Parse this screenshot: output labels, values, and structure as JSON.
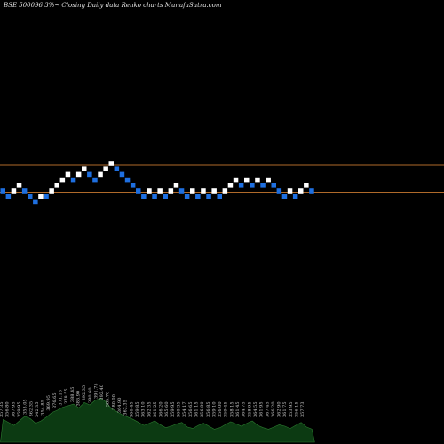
{
  "header": {
    "title": "BSE 500096  3%~  Closing Daily data  Renko  charts MunafaSutra.com"
  },
  "colors": {
    "background": "#000000",
    "brick_up": "#ffffff",
    "brick_down": "#1e6fe0",
    "reference_line": "#b06a2a",
    "volume_fill": "#0c3a12",
    "volume_stroke": "#2b7a2f"
  },
  "chart_data": {
    "type": "renko",
    "brick_size_percent": 3,
    "reference_lines_level": [
      8,
      4
    ],
    "bricks": [
      {
        "level": 4,
        "dir": "down"
      },
      {
        "level": 3,
        "dir": "down"
      },
      {
        "level": 4,
        "dir": "up"
      },
      {
        "level": 5,
        "dir": "up"
      },
      {
        "level": 4,
        "dir": "down"
      },
      {
        "level": 3,
        "dir": "down"
      },
      {
        "level": 2,
        "dir": "down"
      },
      {
        "level": 3,
        "dir": "up"
      },
      {
        "level": 3,
        "dir": "down"
      },
      {
        "level": 4,
        "dir": "up"
      },
      {
        "level": 5,
        "dir": "up"
      },
      {
        "level": 6,
        "dir": "up"
      },
      {
        "level": 7,
        "dir": "up"
      },
      {
        "level": 6,
        "dir": "down"
      },
      {
        "level": 7,
        "dir": "up"
      },
      {
        "level": 8,
        "dir": "up"
      },
      {
        "level": 7,
        "dir": "down"
      },
      {
        "level": 6,
        "dir": "down"
      },
      {
        "level": 7,
        "dir": "up"
      },
      {
        "level": 8,
        "dir": "up"
      },
      {
        "level": 9,
        "dir": "up"
      },
      {
        "level": 8,
        "dir": "down"
      },
      {
        "level": 7,
        "dir": "down"
      },
      {
        "level": 6,
        "dir": "down"
      },
      {
        "level": 5,
        "dir": "down"
      },
      {
        "level": 4,
        "dir": "down"
      },
      {
        "level": 3,
        "dir": "down"
      },
      {
        "level": 4,
        "dir": "up"
      },
      {
        "level": 3,
        "dir": "down"
      },
      {
        "level": 4,
        "dir": "up"
      },
      {
        "level": 3,
        "dir": "down"
      },
      {
        "level": 4,
        "dir": "up"
      },
      {
        "level": 5,
        "dir": "up"
      },
      {
        "level": 4,
        "dir": "down"
      },
      {
        "level": 3,
        "dir": "down"
      },
      {
        "level": 4,
        "dir": "up"
      },
      {
        "level": 3,
        "dir": "down"
      },
      {
        "level": 4,
        "dir": "up"
      },
      {
        "level": 3,
        "dir": "down"
      },
      {
        "level": 4,
        "dir": "up"
      },
      {
        "level": 3,
        "dir": "down"
      },
      {
        "level": 4,
        "dir": "up"
      },
      {
        "level": 5,
        "dir": "up"
      },
      {
        "level": 6,
        "dir": "up"
      },
      {
        "level": 5,
        "dir": "down"
      },
      {
        "level": 6,
        "dir": "up"
      },
      {
        "level": 5,
        "dir": "down"
      },
      {
        "level": 6,
        "dir": "up"
      },
      {
        "level": 5,
        "dir": "down"
      },
      {
        "level": 6,
        "dir": "up"
      },
      {
        "level": 5,
        "dir": "down"
      },
      {
        "level": 4,
        "dir": "down"
      },
      {
        "level": 3,
        "dir": "down"
      },
      {
        "level": 4,
        "dir": "up"
      },
      {
        "level": 3,
        "dir": "down"
      },
      {
        "level": 4,
        "dir": "up"
      },
      {
        "level": 5,
        "dir": "up"
      },
      {
        "level": 4,
        "dir": "down"
      }
    ],
    "price_labels": [
      "357.35",
      "356.80",
      "367.95",
      "359.95",
      "353.05",
      "362.35",
      "342.35",
      "354.85",
      "369.95",
      "376.65",
      "371.15",
      "378.55",
      "388.45",
      "386.90",
      "392.35",
      "380.60",
      "391.75",
      "392.40",
      "385.70",
      "380.00",
      "364.90",
      "362.35",
      "366.45",
      "359.85",
      "363.10",
      "362.35",
      "361.25",
      "366.20",
      "365.60",
      "359.95",
      "360.35",
      "354.17",
      "356.65",
      "361.15",
      "356.80",
      "356.85",
      "359.10",
      "356.00",
      "359.45",
      "358.15",
      "361.45",
      "364.75",
      "358.95",
      "364.55",
      "361.95",
      "367.45",
      "366.20",
      "362.90",
      "361.75",
      "353.95",
      "356.15",
      "357.73"
    ],
    "volume": [
      30,
      26,
      22,
      28,
      34,
      31,
      25,
      28,
      33,
      39,
      42,
      46,
      48,
      50,
      45,
      52,
      49,
      55,
      58,
      53,
      44,
      40,
      36,
      33,
      30,
      26,
      22,
      25,
      28,
      23,
      19,
      21,
      24,
      26,
      20,
      18,
      22,
      25,
      21,
      17,
      19,
      23,
      27,
      24,
      21,
      25,
      28,
      22,
      19,
      17,
      20,
      23,
      21,
      18,
      22,
      26,
      20,
      17
    ]
  }
}
